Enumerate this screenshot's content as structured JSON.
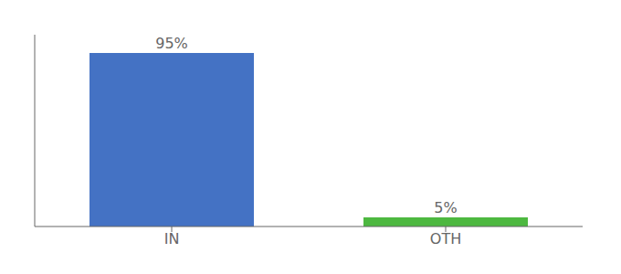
{
  "chart_data": {
    "type": "bar",
    "categories": [
      "IN",
      "OTH"
    ],
    "values": [
      95,
      5
    ],
    "value_labels": [
      "95%",
      "5%"
    ],
    "colors": [
      "#4472c4",
      "#4db840"
    ],
    "ylim": [
      0,
      105
    ],
    "tick_labels": "x",
    "grid": false,
    "data_labels": true
  }
}
